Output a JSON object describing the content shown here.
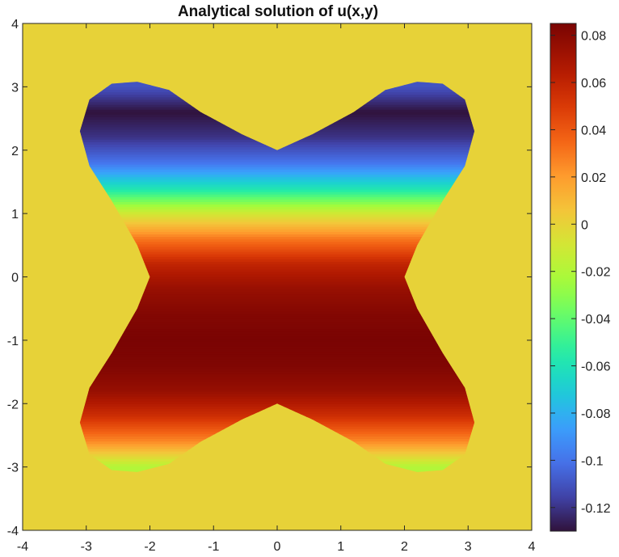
{
  "chart_data": {
    "type": "heatmap",
    "title": "Analytical solution of u(x,y)",
    "xlabel": "",
    "ylabel": "",
    "xlim": [
      -4,
      4
    ],
    "ylim": [
      -4,
      4
    ],
    "xticks": [
      "-4",
      "-3",
      "-2",
      "-1",
      "0",
      "1",
      "2",
      "3",
      "4"
    ],
    "yticks": [
      "4",
      "3",
      "2",
      "1",
      "0",
      "-1",
      "-2",
      "-3",
      "-4"
    ],
    "colorbar": {
      "range": [
        -0.13,
        0.085
      ],
      "ticks": [
        "0.08",
        "0.06",
        "0.04",
        "0.02",
        "0",
        "-0.02",
        "-0.04",
        "-0.06",
        "-0.08",
        "-0.1",
        "-0.12"
      ],
      "colormap": "turbo"
    },
    "domain": "X-shaped region with four rounded lobes centred near (±2.2, ±2.6); narrow waist near x = ±2 at y = 0 and near y = ±2 at x = 0",
    "outside_value": 0,
    "values_summary": {
      "min": -0.13,
      "max": 0.085,
      "min_region": "upper band near y = 2.5",
      "max_region": "lower band near y = -1.2",
      "pattern": "varies mainly with y: negative at top, crossing zero near y = 0.9, positive below, returning toward -0.02 near y = -3"
    },
    "profile_along_y": [
      {
        "y": 3.0,
        "u": -0.11
      },
      {
        "y": 2.6,
        "u": -0.13
      },
      {
        "y": 2.2,
        "u": -0.12
      },
      {
        "y": 1.8,
        "u": -0.1
      },
      {
        "y": 1.4,
        "u": -0.06
      },
      {
        "y": 1.0,
        "u": -0.01
      },
      {
        "y": 0.6,
        "u": 0.03
      },
      {
        "y": 0.2,
        "u": 0.06
      },
      {
        "y": -0.2,
        "u": 0.075
      },
      {
        "y": -0.6,
        "u": 0.082
      },
      {
        "y": -1.0,
        "u": 0.085
      },
      {
        "y": -1.4,
        "u": 0.083
      },
      {
        "y": -1.8,
        "u": 0.075
      },
      {
        "y": -2.2,
        "u": 0.055
      },
      {
        "y": -2.6,
        "u": 0.025
      },
      {
        "y": -3.0,
        "u": -0.02
      }
    ],
    "grid": false,
    "legend": "none"
  }
}
